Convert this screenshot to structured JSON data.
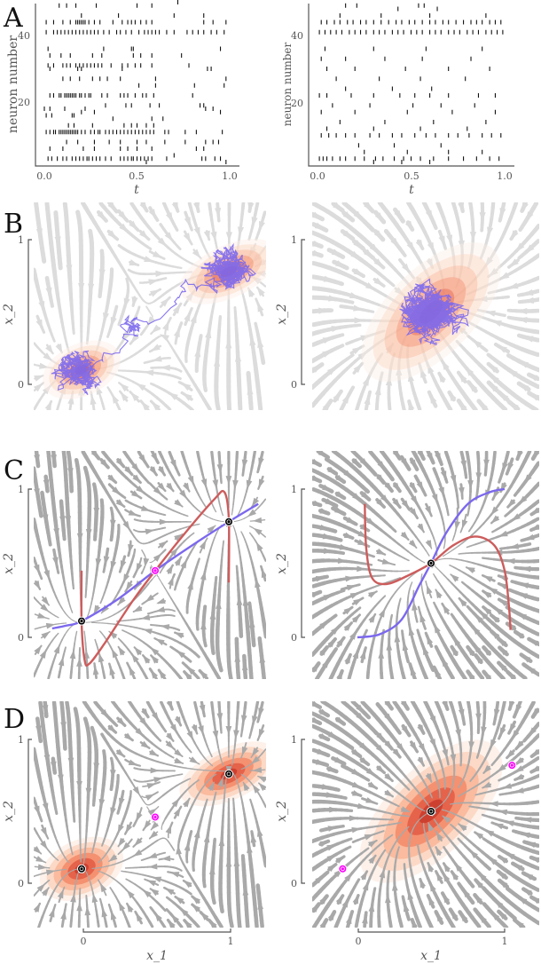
{
  "panel_letters": [
    "A",
    "B",
    "C",
    "D"
  ],
  "colors": {
    "spike": "#111111",
    "stream_light": "#dcdcdc",
    "stream_dark": "#a9a9a9",
    "trajectory": "#7b68ee",
    "nullcline_x1": "#7b68ee",
    "nullcline_x2": "#cd5c5c",
    "stable_fp": "#000000",
    "saddle_fp": "#ff00ff",
    "density_levels": [
      "#fdeee6",
      "#fcd5bf",
      "#f9b597",
      "#f28a68",
      "#e25a43",
      "#c93a2c"
    ]
  },
  "chart_data": [
    {
      "id": "A-left",
      "type": "scatter",
      "subtype": "raster",
      "xlabel": "t",
      "ylabel": "neuron number",
      "xlim": [
        0,
        1
      ],
      "ylim": [
        1,
        50
      ],
      "xticks": [
        "0.0",
        "0.5",
        "1.0"
      ],
      "yticks": [
        "20",
        "40"
      ],
      "spikes": {
        "2": [
          0.55,
          0.98
        ],
        "3": [
          0.02,
          0.04,
          0.07,
          0.1,
          0.12,
          0.15,
          0.17,
          0.19,
          0.21,
          0.23,
          0.24,
          0.26,
          0.28,
          0.3,
          0.33,
          0.36,
          0.41,
          0.43,
          0.45,
          0.47,
          0.48,
          0.5,
          0.52,
          0.54,
          0.56,
          0.58,
          0.66,
          0.85,
          0.87,
          0.92,
          0.95
        ],
        "4": [
          0.7
        ],
        "6": [
          0.03,
          0.1,
          0.21,
          0.27,
          0.41,
          0.45,
          0.5,
          0.58,
          0.82,
          0.86
        ],
        "8": [
          0.12,
          0.18,
          0.27,
          0.35,
          0.41,
          0.5,
          0.55,
          0.65,
          0.76,
          0.87,
          0.91,
          0.94
        ],
        "11": [
          0.01,
          0.03,
          0.05,
          0.06,
          0.08,
          0.09,
          0.1,
          0.11,
          0.12,
          0.13,
          0.14,
          0.15,
          0.16,
          0.17,
          0.18,
          0.2,
          0.22,
          0.25,
          0.27,
          0.29,
          0.3,
          0.33,
          0.35,
          0.37,
          0.39,
          0.41,
          0.43,
          0.45,
          0.47,
          0.49,
          0.51,
          0.53,
          0.55,
          0.57,
          0.59,
          0.65,
          0.67,
          0.76,
          0.82,
          0.96
        ],
        "13": [
          0.13,
          0.16,
          0.26,
          0.43,
          0.47,
          0.5,
          0.55,
          0.59
        ],
        "15": [
          0.37,
          0.58,
          0.64
        ],
        "16": [
          0.01,
          0.04,
          0.15,
          0.16
        ],
        "17": [
          0.2,
          0.27,
          0.95
        ],
        "18": [
          0.0,
          0.03,
          0.11,
          0.22,
          0.87,
          0.91
        ],
        "19": [
          0.33,
          0.44,
          0.47,
          0.57,
          0.62,
          0.84,
          0.86
        ],
        "22": [
          0.03,
          0.05,
          0.08,
          0.09,
          0.11,
          0.12,
          0.13,
          0.14,
          0.15,
          0.16,
          0.17,
          0.19,
          0.2,
          0.22,
          0.24,
          0.25,
          0.31,
          0.34,
          0.41,
          0.43,
          0.45,
          0.49,
          0.53,
          0.55,
          0.59,
          0.8
        ],
        "25": [
          0.51,
          0.6,
          0.81,
          0.97
        ],
        "27": [
          0.1,
          0.14,
          0.19,
          0.26,
          0.3,
          0.34,
          0.41,
          0.6,
          0.98
        ],
        "30": [
          0.03,
          0.18,
          0.2,
          0.42,
          0.88,
          0.9
        ],
        "31": [
          0.02,
          0.05,
          0.1,
          0.12,
          0.14,
          0.17,
          0.19,
          0.21,
          0.23,
          0.25,
          0.27,
          0.29,
          0.31,
          0.36,
          0.42,
          0.45,
          0.49,
          0.52,
          0.58,
          0.78
        ],
        "34": [
          0.03,
          0.09,
          0.14,
          0.26,
          0.31,
          0.48,
          0.52,
          0.58,
          0.74
        ],
        "36": [
          0.02,
          0.32,
          0.47,
          0.48,
          0.95
        ],
        "41": [
          0.01,
          0.05,
          0.07,
          0.09,
          0.11,
          0.13,
          0.15,
          0.17,
          0.19,
          0.21,
          0.23,
          0.25,
          0.27,
          0.29,
          0.32,
          0.35,
          0.39,
          0.41,
          0.44,
          0.47,
          0.51,
          0.54,
          0.56,
          0.58,
          0.6,
          0.62,
          0.66,
          0.7,
          0.77,
          0.8,
          0.83,
          0.86,
          0.9,
          0.93,
          0.97
        ],
        "44": [
          0.01,
          0.05,
          0.1,
          0.14,
          0.17,
          0.18,
          0.19,
          0.2,
          0.21,
          0.22,
          0.24,
          0.27,
          0.3,
          0.37,
          0.42,
          0.45,
          0.47,
          0.49,
          0.52,
          0.55,
          0.58,
          0.86,
          0.91,
          0.98
        ],
        "46": [
          0.2,
          0.4,
          0.7,
          0.86
        ],
        "49": [
          0.08,
          0.12,
          0.17,
          0.28,
          0.5,
          0.58
        ],
        "50": [
          0.72
        ]
      }
    },
    {
      "id": "A-right",
      "type": "scatter",
      "subtype": "raster",
      "xlabel": "t",
      "ylabel": "neuron number",
      "xlim": [
        0,
        1
      ],
      "ylim": [
        1,
        50
      ],
      "xticks": [
        "0.0",
        "0.5",
        "1.0"
      ],
      "yticks": [
        "20",
        "40"
      ],
      "spikes": {
        "2": [
          0.3,
          0.45,
          0.6
        ],
        "3": [
          0.01,
          0.03,
          0.05,
          0.08,
          0.12,
          0.15,
          0.2,
          0.25,
          0.31,
          0.35,
          0.41,
          0.46,
          0.5,
          0.55,
          0.62,
          0.7,
          0.78,
          0.85,
          0.92,
          0.97
        ],
        "5": [
          0.25,
          0.48,
          0.7,
          0.88
        ],
        "7": [
          0.22,
          0.41,
          0.66
        ],
        "10": [
          0.02,
          0.06,
          0.1,
          0.15,
          0.2,
          0.28,
          0.33,
          0.4,
          0.45,
          0.52,
          0.58,
          0.63,
          0.7,
          0.75,
          0.81,
          0.88,
          0.93,
          0.98
        ],
        "12": [
          0.05,
          0.3,
          0.55,
          0.8
        ],
        "14": [
          0.12,
          0.36,
          0.62,
          0.9
        ],
        "17": [
          0.02,
          0.2,
          0.48,
          0.72,
          0.95
        ],
        "19": [
          0.08,
          0.28,
          0.51,
          0.66,
          0.84
        ],
        "22": [
          0.01,
          0.05,
          0.18,
          0.3,
          0.44,
          0.52,
          0.6,
          0.7,
          0.86,
          0.95
        ],
        "24": [
          0.15,
          0.4,
          0.61
        ],
        "27": [
          0.1,
          0.33,
          0.55,
          0.79
        ],
        "30": [
          0.05,
          0.2,
          0.47,
          0.7,
          0.92
        ],
        "33": [
          0.02,
          0.15,
          0.36,
          0.56,
          0.82
        ],
        "36": [
          0.04,
          0.3,
          0.58,
          0.88
        ],
        "41": [
          0.01,
          0.04,
          0.07,
          0.1,
          0.13,
          0.17,
          0.2,
          0.23,
          0.26,
          0.3,
          0.33,
          0.36,
          0.4,
          0.43,
          0.46,
          0.5,
          0.53,
          0.56,
          0.6,
          0.63,
          0.66,
          0.7,
          0.73,
          0.76,
          0.8,
          0.83,
          0.86,
          0.9,
          0.93,
          0.96,
          0.99
        ],
        "44": [
          0.02,
          0.05,
          0.09,
          0.12,
          0.16,
          0.19,
          0.23,
          0.26,
          0.3,
          0.34,
          0.38,
          0.42,
          0.45,
          0.49,
          0.52,
          0.56,
          0.6,
          0.63,
          0.67,
          0.7,
          0.74,
          0.78,
          0.82,
          0.85,
          0.88,
          0.92,
          0.95,
          0.98
        ],
        "46": [
          0.12,
          0.34,
          0.6,
          0.9
        ],
        "48": [
          0.43,
          0.64
        ],
        "49": [
          0.15,
          0.21,
          0.54,
          0.57
        ]
      }
    },
    {
      "id": "B-left",
      "type": "line",
      "subtype": "streamplot+trajectory",
      "ylabel": "x_2",
      "yticks": [
        "0",
        "1"
      ],
      "stable_fixed_points": [
        [
          0,
          0.1
        ],
        [
          1,
          0.78
        ]
      ],
      "saddle_points": [
        [
          0.5,
          0.45
        ]
      ]
    },
    {
      "id": "B-right",
      "type": "line",
      "subtype": "streamplot+trajectory",
      "ylabel": "x_2",
      "yticks": [
        "0",
        "1"
      ],
      "stable_fixed_points": [
        [
          0.5,
          0.5
        ]
      ]
    },
    {
      "id": "C-left",
      "type": "line",
      "subtype": "nullclines",
      "ylabel": "x_2",
      "yticks": [
        "0",
        "1"
      ],
      "nullcline_x1": [
        [
          -0.2,
          0.06
        ],
        [
          -0.1,
          0.08
        ],
        [
          0,
          0.11
        ],
        [
          0.25,
          0.26
        ],
        [
          0.5,
          0.45
        ],
        [
          0.75,
          0.62
        ],
        [
          1,
          0.78
        ],
        [
          1.2,
          0.9
        ]
      ],
      "nullcline_x2": [
        [
          0,
          0.45
        ],
        [
          0,
          0.1
        ],
        [
          0.02,
          -0.15
        ],
        [
          0.05,
          -0.18
        ],
        [
          0.15,
          -0.05
        ],
        [
          0.35,
          0.25
        ],
        [
          0.5,
          0.45
        ],
        [
          0.7,
          0.7
        ],
        [
          0.9,
          0.93
        ],
        [
          0.97,
          0.98
        ],
        [
          1,
          0.8
        ],
        [
          1,
          0.37
        ]
      ],
      "stable_fixed_points": [
        [
          0,
          0.11
        ],
        [
          1,
          0.78
        ]
      ],
      "saddle_points": [
        [
          0.5,
          0.45
        ]
      ]
    },
    {
      "id": "C-right",
      "type": "line",
      "subtype": "nullclines",
      "ylabel": "x_2",
      "yticks": [
        "0",
        "1"
      ],
      "nullcline_x1": [
        [
          0,
          0
        ],
        [
          0.15,
          0.02
        ],
        [
          0.3,
          0.12
        ],
        [
          0.42,
          0.35
        ],
        [
          0.5,
          0.5
        ],
        [
          0.6,
          0.7
        ],
        [
          0.75,
          0.9
        ],
        [
          0.9,
          0.98
        ],
        [
          1,
          1
        ]
      ],
      "nullcline_x2": [
        [
          0.05,
          0.9
        ],
        [
          0.06,
          0.6
        ],
        [
          0.1,
          0.4
        ],
        [
          0.2,
          0.36
        ],
        [
          0.35,
          0.42
        ],
        [
          0.5,
          0.5
        ],
        [
          0.65,
          0.62
        ],
        [
          0.8,
          0.68
        ],
        [
          0.93,
          0.62
        ],
        [
          1.0,
          0.45
        ],
        [
          1.03,
          0.2
        ],
        [
          1.04,
          0.05
        ]
      ],
      "stable_fixed_points": [
        [
          0.5,
          0.5
        ]
      ]
    },
    {
      "id": "D-left",
      "type": "heatmap",
      "subtype": "streamplot+density",
      "xlabel": "x_1",
      "ylabel": "x_2",
      "xticks": [
        "0",
        "1"
      ],
      "yticks": [
        "0",
        "1"
      ],
      "stable_fixed_points": [
        [
          0,
          0.1
        ],
        [
          1,
          0.76
        ]
      ],
      "saddle_points": [
        [
          0.5,
          0.46
        ]
      ]
    },
    {
      "id": "D-right",
      "type": "heatmap",
      "subtype": "streamplot+density",
      "xlabel": "x_1",
      "ylabel": "x_2",
      "xticks": [
        "0",
        "1"
      ],
      "yticks": [
        "0",
        "1"
      ],
      "stable_fixed_points": [
        [
          0.5,
          0.5
        ]
      ],
      "saddle_points": [
        [
          -0.1,
          0.1
        ],
        [
          1.05,
          0.82
        ]
      ]
    }
  ]
}
